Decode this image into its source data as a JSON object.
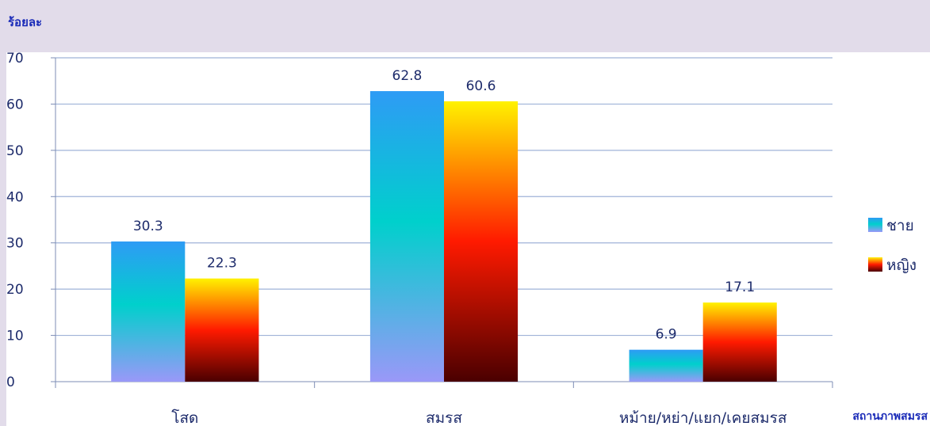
{
  "chart_data": {
    "type": "bar",
    "ylabel": "ร้อยละ",
    "xlabel": "สถานภาพสมรส",
    "categories": [
      "โสด",
      "สมรส",
      "หม้าย/หย่า/แยก/เคยสมรส"
    ],
    "series": [
      {
        "name": "ชาย",
        "values": [
          30.3,
          62.8,
          6.9
        ]
      },
      {
        "name": "หญิง",
        "values": [
          22.3,
          60.6,
          17.1
        ]
      }
    ],
    "ylim": [
      0,
      70
    ],
    "yticks": [
      0,
      10,
      20,
      30,
      40,
      50,
      60,
      70
    ],
    "grid": true,
    "legend": "right",
    "colors": {
      "male_top": "#2e9bf5",
      "male_mid": "#00d0cc",
      "male_bottom": "#9a98f8",
      "female_top": "#fff200",
      "female_mid": "#ff1a00",
      "female_bottom": "#4a0000",
      "gridline": "#9fb3d8",
      "background": "#e2dcea",
      "plot_background": "#ffffff"
    }
  }
}
